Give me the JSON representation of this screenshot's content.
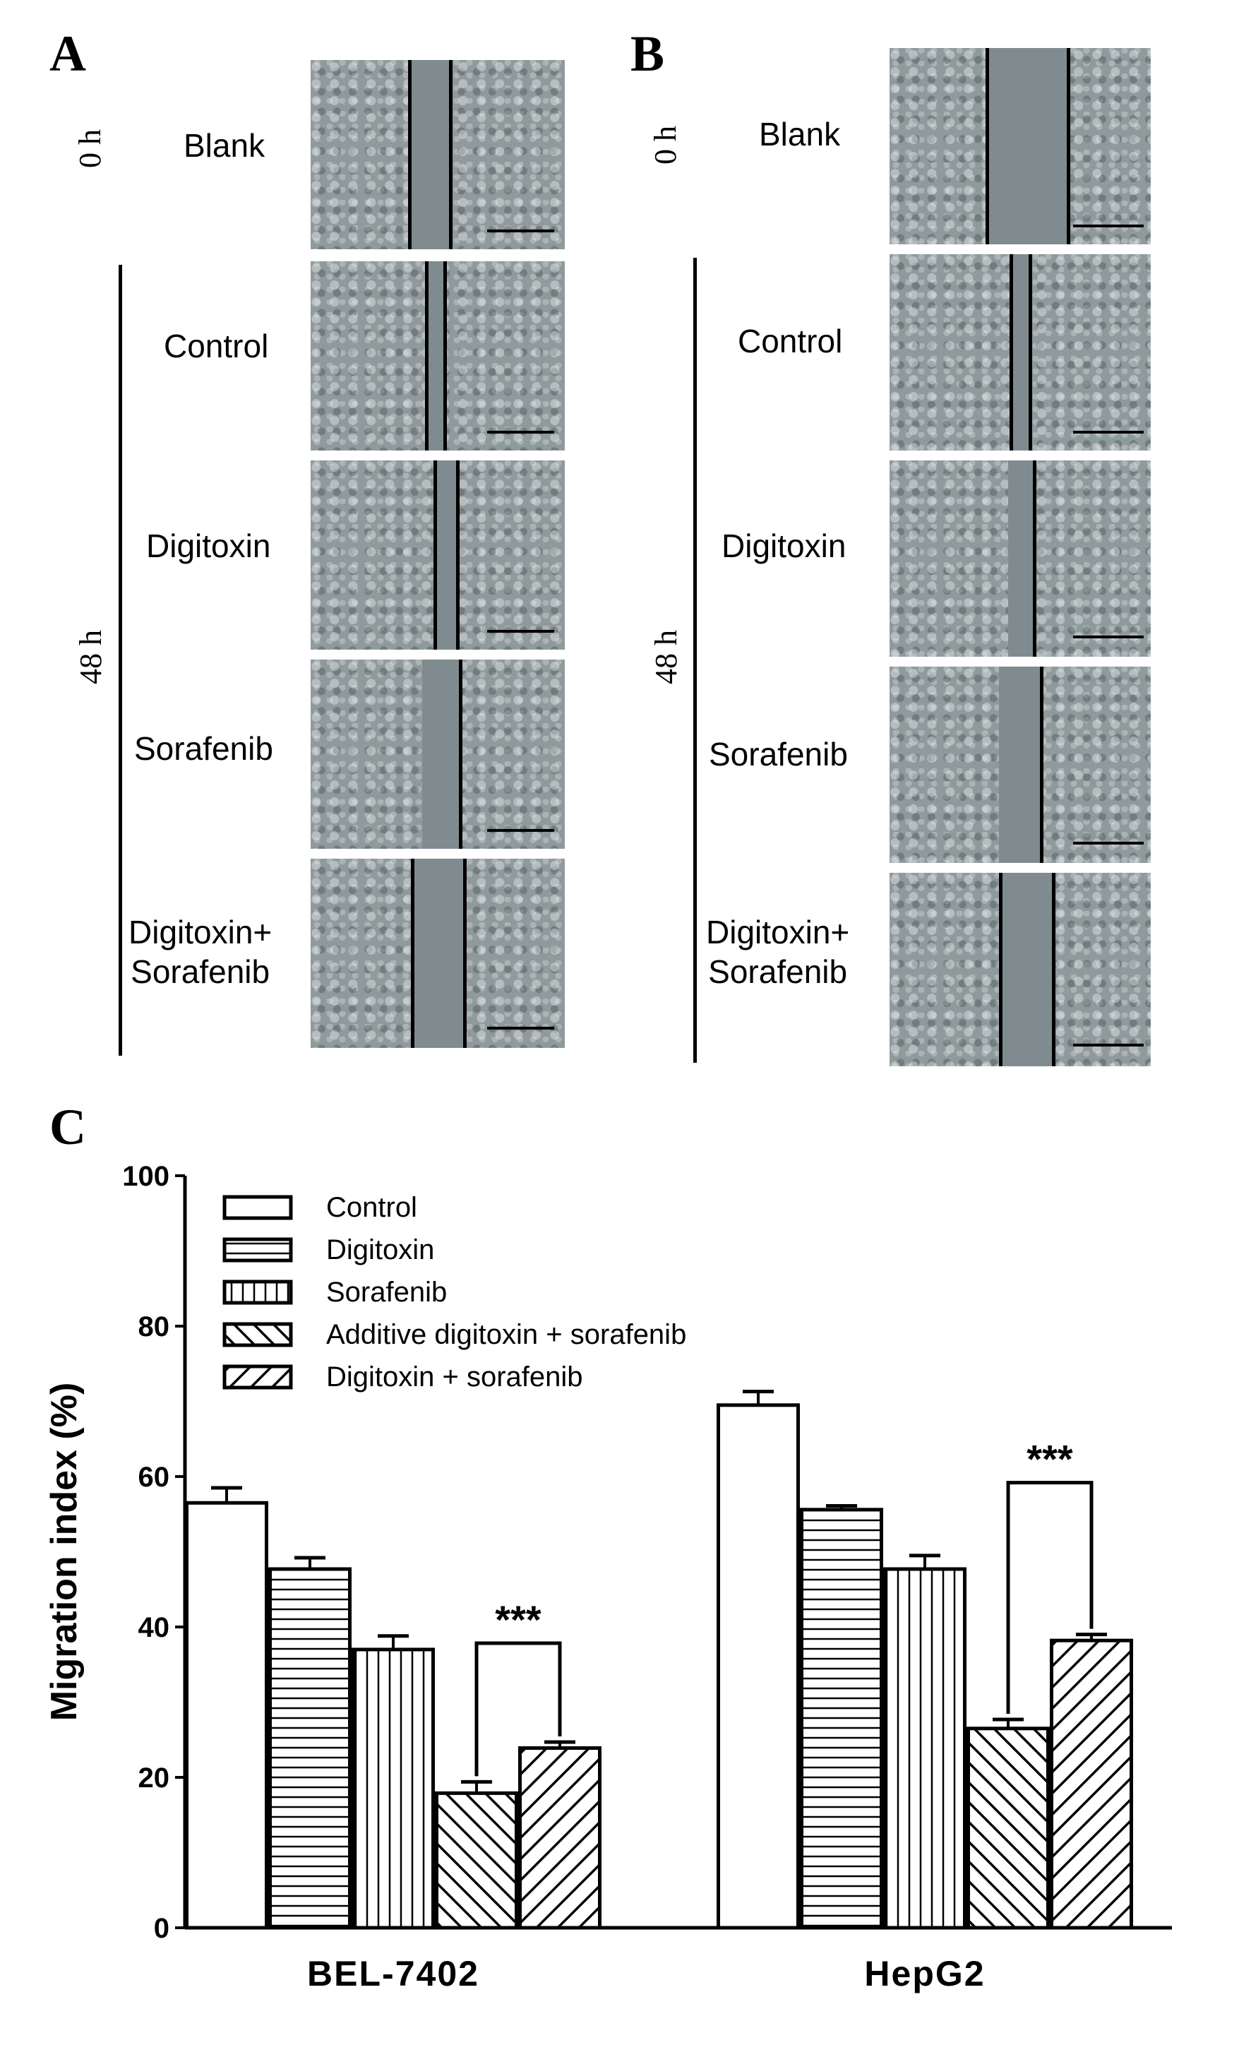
{
  "panels": {
    "a": {
      "letter": "A"
    },
    "b": {
      "letter": "B"
    },
    "c": {
      "letter": "C"
    }
  },
  "time_labels": {
    "t0": "0 h",
    "t48": "48 h"
  },
  "conditions": {
    "blank": "Blank",
    "control": "Control",
    "digitoxin": "Digitoxin",
    "sorafenib": "Sorafenib",
    "combo_line1": "Digitoxin+",
    "combo_line2": "Sorafenib"
  },
  "chart_data": {
    "type": "bar",
    "title": "",
    "xlabel": "",
    "ylabel": "Migration index (%)",
    "ylim": [
      0,
      100
    ],
    "yticks": [
      0,
      20,
      40,
      60,
      80,
      100
    ],
    "categories": [
      "BEL-7402",
      "HepG2"
    ],
    "series": [
      {
        "name": "Control",
        "values": [
          56.5,
          69.5
        ],
        "errors": [
          2.0,
          1.8
        ],
        "pattern": "open"
      },
      {
        "name": "Digitoxin",
        "values": [
          47.7,
          55.6
        ],
        "errors": [
          1.5,
          0.5
        ],
        "pattern": "horizontal"
      },
      {
        "name": "Sorafenib",
        "values": [
          37.0,
          47.7
        ],
        "errors": [
          1.8,
          1.8
        ],
        "pattern": "vertical"
      },
      {
        "name": "Additive digitoxin + sorafenib",
        "values": [
          17.9,
          26.5
        ],
        "errors": [
          1.5,
          1.2
        ],
        "pattern": "backslash"
      },
      {
        "name": "Digitoxin + sorafenib",
        "values": [
          23.9,
          38.2
        ],
        "errors": [
          0.8,
          0.8
        ],
        "pattern": "slash"
      }
    ],
    "significance": [
      {
        "category": "BEL-7402",
        "between": [
          "Additive digitoxin + sorafenib",
          "Digitoxin + sorafenib"
        ],
        "label": "***"
      },
      {
        "category": "HepG2",
        "between": [
          "Additive digitoxin + sorafenib",
          "Digitoxin + sorafenib"
        ],
        "label": "***"
      }
    ],
    "legend_position": "top-left",
    "grid": false
  }
}
